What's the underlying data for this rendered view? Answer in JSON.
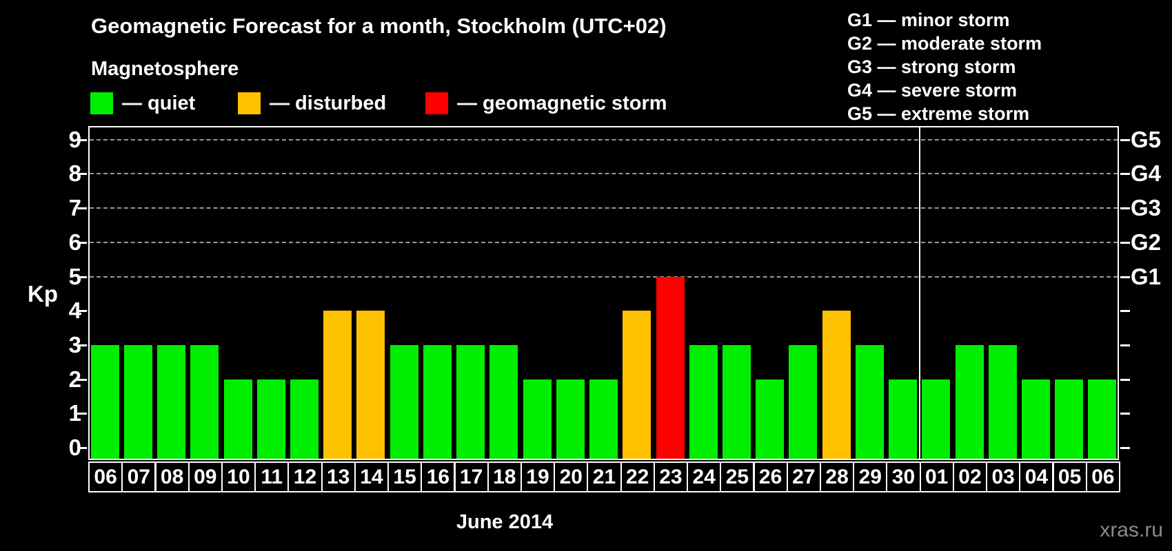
{
  "title": "Geomagnetic Forecast for a month, Stockholm (UTC+02)",
  "legend": {
    "heading": "Magnetosphere",
    "items": [
      {
        "name": "quiet",
        "label": "— quiet",
        "color": "#00EE00"
      },
      {
        "name": "disturbed",
        "label": "— disturbed",
        "color": "#FFC200"
      },
      {
        "name": "storm",
        "label": "— geomagnetic storm",
        "color": "#FF0000"
      }
    ]
  },
  "storm_scale_legend": [
    "G1 — minor storm",
    "G2 — moderate storm",
    "G3 — strong storm",
    "G4 — severe storm",
    "G5 — extreme storm"
  ],
  "watermark": "xras.ru",
  "chart_data": {
    "type": "bar",
    "title": "Geomagnetic Forecast for a month, Stockholm (UTC+02)",
    "xlabel": "June 2014",
    "ylabel": "Kp",
    "ylim": [
      0,
      9
    ],
    "yticks": [
      0,
      1,
      2,
      3,
      4,
      5,
      6,
      7,
      8,
      9
    ],
    "gridlines_at": [
      5,
      6,
      7,
      8,
      9
    ],
    "grid_color": "#999999",
    "right_axis": {
      "labels": [
        "G1",
        "G2",
        "G3",
        "G4",
        "G5"
      ],
      "levels": [
        5,
        6,
        7,
        8,
        9
      ]
    },
    "categories": [
      "06",
      "07",
      "08",
      "09",
      "10",
      "11",
      "12",
      "13",
      "14",
      "15",
      "16",
      "17",
      "18",
      "19",
      "20",
      "21",
      "22",
      "23",
      "24",
      "25",
      "26",
      "27",
      "28",
      "29",
      "30",
      "01",
      "02",
      "03",
      "04",
      "05",
      "06"
    ],
    "values": [
      3,
      3,
      3,
      3,
      2,
      2,
      2,
      4,
      4,
      3,
      3,
      3,
      3,
      2,
      2,
      2,
      4,
      5,
      3,
      3,
      2,
      3,
      4,
      3,
      2,
      2,
      3,
      3,
      2,
      2,
      2
    ],
    "statuses": [
      "quiet",
      "quiet",
      "quiet",
      "quiet",
      "quiet",
      "quiet",
      "quiet",
      "disturbed",
      "disturbed",
      "quiet",
      "quiet",
      "quiet",
      "quiet",
      "quiet",
      "quiet",
      "quiet",
      "disturbed",
      "storm",
      "quiet",
      "quiet",
      "quiet",
      "quiet",
      "disturbed",
      "quiet",
      "quiet",
      "quiet",
      "quiet",
      "quiet",
      "quiet",
      "quiet",
      "quiet"
    ],
    "colors_by_status": {
      "quiet": "#00EE00",
      "disturbed": "#FFC200",
      "storm": "#FF0000"
    },
    "month_separator_after_index": 24,
    "legend_position": "top"
  }
}
